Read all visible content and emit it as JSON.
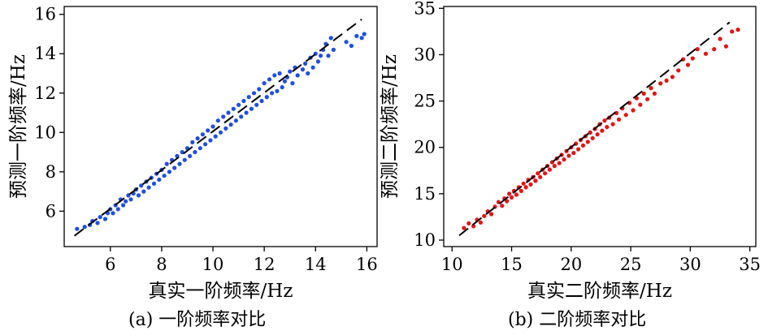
{
  "chart_data": [
    {
      "type": "scatter",
      "caption": "(a) 一阶频率对比",
      "xlabel": "真实一阶频率/Hz",
      "ylabel": "预测一阶频率/Hz",
      "xlim": [
        4.2,
        16.4
      ],
      "ylim": [
        4.2,
        16.4
      ],
      "xticks": [
        6,
        8,
        10,
        12,
        14,
        16
      ],
      "yticks": [
        6,
        8,
        10,
        12,
        14,
        16
      ],
      "grid": false,
      "legend": "none",
      "colors": {
        "points": "#1f4fe0",
        "reference_line": "#000000"
      },
      "reference_line": {
        "style": "dashed",
        "from": [
          4.6,
          4.75
        ],
        "to": [
          15.8,
          15.75
        ]
      },
      "series": [
        {
          "values": [
            [
              4.7,
              5.1
            ],
            [
              5.0,
              5.2
            ],
            [
              5.2,
              5.3
            ],
            [
              5.3,
              5.5
            ],
            [
              5.5,
              5.4
            ],
            [
              5.6,
              5.7
            ],
            [
              5.8,
              5.6
            ],
            [
              5.9,
              5.9
            ],
            [
              6.0,
              6.1
            ],
            [
              6.1,
              5.9
            ],
            [
              6.2,
              6.3
            ],
            [
              6.3,
              6.1
            ],
            [
              6.4,
              6.6
            ],
            [
              6.5,
              6.3
            ],
            [
              6.6,
              6.5
            ],
            [
              6.7,
              6.8
            ],
            [
              6.8,
              6.6
            ],
            [
              6.9,
              6.9
            ],
            [
              7.0,
              7.1
            ],
            [
              7.1,
              6.8
            ],
            [
              7.2,
              7.3
            ],
            [
              7.3,
              7.0
            ],
            [
              7.4,
              7.5
            ],
            [
              7.5,
              7.2
            ],
            [
              7.6,
              7.7
            ],
            [
              7.7,
              7.4
            ],
            [
              7.8,
              7.9
            ],
            [
              7.9,
              7.6
            ],
            [
              8.0,
              8.1
            ],
            [
              8.1,
              7.8
            ],
            [
              8.2,
              8.4
            ],
            [
              8.3,
              8.0
            ],
            [
              8.4,
              8.6
            ],
            [
              8.5,
              8.2
            ],
            [
              8.6,
              8.8
            ],
            [
              8.7,
              8.4
            ],
            [
              8.8,
              9.0
            ],
            [
              8.9,
              8.6
            ],
            [
              9.0,
              9.2
            ],
            [
              9.1,
              8.8
            ],
            [
              9.2,
              9.5
            ],
            [
              9.3,
              9.0
            ],
            [
              9.4,
              9.7
            ],
            [
              9.5,
              9.2
            ],
            [
              9.6,
              9.9
            ],
            [
              9.7,
              9.4
            ],
            [
              9.8,
              10.1
            ],
            [
              9.9,
              9.6
            ],
            [
              10.0,
              10.3
            ],
            [
              10.1,
              9.8
            ],
            [
              10.2,
              10.6
            ],
            [
              10.3,
              10.0
            ],
            [
              10.4,
              10.8
            ],
            [
              10.5,
              10.2
            ],
            [
              10.6,
              11.0
            ],
            [
              10.7,
              10.4
            ],
            [
              10.8,
              11.2
            ],
            [
              10.9,
              10.6
            ],
            [
              11.0,
              11.4
            ],
            [
              11.1,
              10.8
            ],
            [
              11.2,
              11.6
            ],
            [
              11.3,
              11.0
            ],
            [
              11.4,
              11.8
            ],
            [
              11.5,
              11.2
            ],
            [
              11.6,
              12.0
            ],
            [
              11.7,
              11.4
            ],
            [
              11.8,
              12.2
            ],
            [
              11.9,
              11.6
            ],
            [
              12.0,
              12.5
            ],
            [
              12.1,
              11.8
            ],
            [
              12.2,
              12.7
            ],
            [
              12.3,
              12.0
            ],
            [
              12.4,
              12.9
            ],
            [
              12.5,
              12.1
            ],
            [
              12.6,
              13.0
            ],
            [
              12.7,
              12.3
            ],
            [
              12.8,
              12.6
            ],
            [
              12.9,
              12.8
            ],
            [
              13.0,
              13.1
            ],
            [
              13.1,
              12.5
            ],
            [
              13.2,
              13.3
            ],
            [
              13.3,
              12.9
            ],
            [
              13.5,
              13.2
            ],
            [
              13.6,
              13.5
            ],
            [
              13.7,
              13.0
            ],
            [
              13.8,
              13.8
            ],
            [
              13.9,
              13.3
            ],
            [
              14.0,
              14.0
            ],
            [
              14.1,
              13.6
            ],
            [
              14.2,
              13.9
            ],
            [
              14.3,
              14.2
            ],
            [
              14.4,
              14.5
            ],
            [
              14.5,
              13.9
            ],
            [
              14.6,
              14.8
            ],
            [
              14.7,
              14.2
            ],
            [
              15.2,
              14.6
            ],
            [
              15.4,
              14.4
            ],
            [
              15.6,
              14.9
            ],
            [
              15.8,
              14.8
            ],
            [
              15.9,
              15.0
            ]
          ]
        }
      ]
    },
    {
      "type": "scatter",
      "caption": "(b) 二阶频率对比",
      "xlabel": "真实二阶频率/Hz",
      "ylabel": "预测二阶频率/Hz",
      "xlim": [
        9.3,
        35.5
      ],
      "ylim": [
        9.3,
        35.2
      ],
      "xticks": [
        10,
        15,
        20,
        25,
        30,
        35
      ],
      "yticks": [
        10,
        15,
        20,
        25,
        30,
        35
      ],
      "grid": false,
      "legend": "none",
      "colors": {
        "points": "#e01515",
        "reference_line": "#000000"
      },
      "reference_line": {
        "style": "dashed",
        "from": [
          10.6,
          10.5
        ],
        "to": [
          33.3,
          33.5
        ]
      },
      "series": [
        {
          "values": [
            [
              11.0,
              11.3
            ],
            [
              11.4,
              11.8
            ],
            [
              11.8,
              11.5
            ],
            [
              12.1,
              12.2
            ],
            [
              12.4,
              11.9
            ],
            [
              12.7,
              12.6
            ],
            [
              13.0,
              13.1
            ],
            [
              13.3,
              12.8
            ],
            [
              13.6,
              13.6
            ],
            [
              13.9,
              14.1
            ],
            [
              14.2,
              13.7
            ],
            [
              14.4,
              14.5
            ],
            [
              14.6,
              14.2
            ],
            [
              14.8,
              15.0
            ],
            [
              15.0,
              14.6
            ],
            [
              15.2,
              15.3
            ],
            [
              15.4,
              14.9
            ],
            [
              15.6,
              15.7
            ],
            [
              15.8,
              15.3
            ],
            [
              16.0,
              16.1
            ],
            [
              16.2,
              15.7
            ],
            [
              16.4,
              16.5
            ],
            [
              16.6,
              16.0
            ],
            [
              16.8,
              16.8
            ],
            [
              17.0,
              16.4
            ],
            [
              17.2,
              17.2
            ],
            [
              17.4,
              16.8
            ],
            [
              17.6,
              17.6
            ],
            [
              17.8,
              17.2
            ],
            [
              18.0,
              18.0
            ],
            [
              18.2,
              17.6
            ],
            [
              18.4,
              18.4
            ],
            [
              18.6,
              18.0
            ],
            [
              18.8,
              18.8
            ],
            [
              19.0,
              18.3
            ],
            [
              19.2,
              19.2
            ],
            [
              19.4,
              18.7
            ],
            [
              19.6,
              19.6
            ],
            [
              19.8,
              19.1
            ],
            [
              20.0,
              20.0
            ],
            [
              20.2,
              19.4
            ],
            [
              20.4,
              20.4
            ],
            [
              20.6,
              19.8
            ],
            [
              20.8,
              20.8
            ],
            [
              21.0,
              20.2
            ],
            [
              21.2,
              21.2
            ],
            [
              21.4,
              20.6
            ],
            [
              21.6,
              21.6
            ],
            [
              21.8,
              21.0
            ],
            [
              22.0,
              22.0
            ],
            [
              22.2,
              21.4
            ],
            [
              22.4,
              22.5
            ],
            [
              22.6,
              21.8
            ],
            [
              22.8,
              22.9
            ],
            [
              23.0,
              22.2
            ],
            [
              23.2,
              23.2
            ],
            [
              23.5,
              22.5
            ],
            [
              23.8,
              23.7
            ],
            [
              24.0,
              23.0
            ],
            [
              24.3,
              24.2
            ],
            [
              24.6,
              23.5
            ],
            [
              24.9,
              24.8
            ],
            [
              25.2,
              24.0
            ],
            [
              25.5,
              25.3
            ],
            [
              25.8,
              24.6
            ],
            [
              26.1,
              25.8
            ],
            [
              26.4,
              25.2
            ],
            [
              26.7,
              26.4
            ],
            [
              27.0,
              25.8
            ],
            [
              27.5,
              26.9
            ],
            [
              28.0,
              27.2
            ],
            [
              28.5,
              27.6
            ],
            [
              29.0,
              28.3
            ],
            [
              29.4,
              29.5
            ],
            [
              29.8,
              28.9
            ],
            [
              30.2,
              29.6
            ],
            [
              30.6,
              30.6
            ],
            [
              31.3,
              30.1
            ],
            [
              32.0,
              30.6
            ],
            [
              32.5,
              31.7
            ],
            [
              33.0,
              30.9
            ],
            [
              33.5,
              32.5
            ],
            [
              34.0,
              32.7
            ]
          ]
        }
      ]
    }
  ]
}
